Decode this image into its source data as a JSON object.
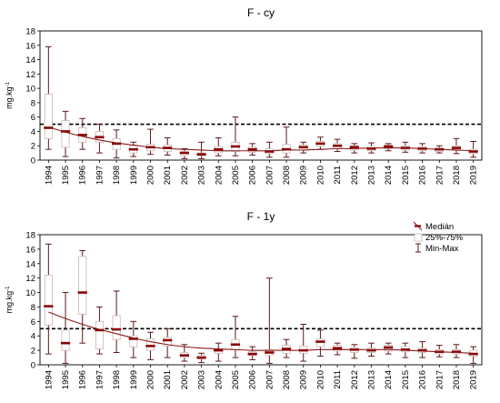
{
  "chart_data": [
    {
      "type": "box",
      "title": "F - cy",
      "ylabel": "mg.kg-1",
      "ylabel_main": "mg.kg",
      "ylabel_sup": "-1",
      "ylim": [
        0,
        18
      ],
      "yticks": [
        0,
        2,
        4,
        6,
        8,
        10,
        12,
        14,
        16,
        18
      ],
      "reference_line": 5,
      "categories": [
        "1994",
        "1995",
        "1996",
        "1997",
        "1998",
        "1999",
        "2000",
        "2001",
        "2002",
        "2003",
        "2004",
        "2005",
        "2006",
        "2007",
        "2008",
        "2009",
        "2010",
        "2011",
        "2012",
        "2013",
        "2014",
        "2015",
        "2016",
        "2017",
        "2018",
        "2019"
      ],
      "median": [
        4.5,
        4.0,
        3.5,
        3.2,
        2.3,
        1.5,
        1.8,
        1.7,
        1.0,
        0.8,
        1.5,
        1.9,
        1.5,
        1.2,
        1.5,
        1.8,
        2.3,
        2.0,
        1.8,
        1.6,
        1.9,
        1.7,
        1.6,
        1.5,
        1.7,
        1.2
      ],
      "q1": [
        3.0,
        1.8,
        2.5,
        2.5,
        1.5,
        1.0,
        1.3,
        1.2,
        0.6,
        0.6,
        1.0,
        1.2,
        1.1,
        0.9,
        1.0,
        1.4,
        1.9,
        1.6,
        1.4,
        1.3,
        1.6,
        1.4,
        1.3,
        1.2,
        1.3,
        0.9
      ],
      "q3": [
        9.2,
        5.5,
        4.5,
        4.0,
        3.0,
        2.0,
        2.2,
        2.1,
        1.2,
        1.0,
        1.9,
        2.5,
        1.8,
        1.6,
        2.2,
        2.1,
        2.6,
        2.3,
        2.0,
        1.9,
        2.1,
        2.0,
        1.9,
        1.7,
        2.0,
        1.5
      ],
      "min": [
        1.5,
        0.5,
        1.5,
        1.0,
        0.3,
        0.5,
        0.8,
        0.7,
        0.2,
        0.2,
        0.6,
        0.6,
        0.7,
        0.4,
        0.4,
        1.0,
        1.5,
        1.2,
        1.0,
        1.0,
        1.3,
        1.1,
        1.0,
        1.0,
        0.9,
        0.4
      ],
      "max": [
        15.8,
        6.8,
        5.8,
        5.0,
        4.2,
        2.5,
        4.3,
        3.1,
        1.6,
        2.5,
        3.1,
        6.0,
        2.3,
        2.5,
        4.6,
        2.5,
        3.2,
        2.9,
        2.3,
        2.4,
        2.3,
        2.5,
        2.3,
        2.0,
        3.0,
        2.6
      ],
      "trend": [
        4.6,
        3.9,
        3.3,
        2.8,
        2.4,
        2.1,
        1.8,
        1.6,
        1.5,
        1.4,
        1.3,
        1.3,
        1.3,
        1.3,
        1.4,
        1.4,
        1.5,
        1.6,
        1.6,
        1.7,
        1.7,
        1.7,
        1.6,
        1.5,
        1.4,
        1.3
      ],
      "colors": {
        "box": "#c9b8b3",
        "median": "#8b0000",
        "whisker": "#5a1a1a",
        "trend": "#8b1a1a",
        "reference": "#000000"
      }
    },
    {
      "type": "box",
      "title": "F - 1y",
      "ylabel": "mg.kg-1",
      "ylabel_main": "mg.kg",
      "ylabel_sup": "-1",
      "ylim": [
        0,
        18
      ],
      "yticks": [
        0,
        2,
        4,
        6,
        8,
        10,
        12,
        14,
        16,
        18
      ],
      "reference_line": 5,
      "categories": [
        "1994",
        "1995",
        "1996",
        "1997",
        "1998",
        "1999",
        "2000",
        "2001",
        "2002",
        "2003",
        "2004",
        "2005",
        "2006",
        "2007",
        "2008",
        "2009",
        "2010",
        "2011",
        "2012",
        "2013",
        "2014",
        "2015",
        "2016",
        "2017",
        "2018",
        "2019"
      ],
      "median": [
        8.1,
        3.0,
        10.0,
        4.8,
        4.9,
        3.6,
        2.6,
        3.4,
        1.3,
        1.0,
        2.0,
        2.8,
        1.5,
        1.7,
        2.2,
        2.0,
        3.2,
        2.3,
        2.1,
        2.0,
        2.4,
        2.1,
        2.0,
        1.8,
        1.8,
        1.5
      ],
      "q1": [
        5.5,
        2.0,
        7.0,
        2.2,
        3.5,
        2.5,
        2.0,
        2.6,
        1.0,
        0.8,
        1.6,
        2.1,
        1.3,
        1.3,
        1.6,
        1.6,
        2.5,
        1.9,
        1.7,
        1.7,
        1.9,
        1.8,
        1.7,
        1.5,
        1.5,
        1.2
      ],
      "q3": [
        12.4,
        4.8,
        15.0,
        6.0,
        6.8,
        4.0,
        3.6,
        3.8,
        1.7,
        1.3,
        2.1,
        3.5,
        1.8,
        2.1,
        2.7,
        2.6,
        3.6,
        2.7,
        2.4,
        2.3,
        2.7,
        2.5,
        2.3,
        2.1,
        2.1,
        2.0
      ],
      "min": [
        1.5,
        0.2,
        3.0,
        1.5,
        1.7,
        1.0,
        0.7,
        1.0,
        0.5,
        0.3,
        0.5,
        1.0,
        0.7,
        0.2,
        1.0,
        0.5,
        1.2,
        1.4,
        0.9,
        1.2,
        1.5,
        1.0,
        1.0,
        1.1,
        1.0,
        0.2
      ],
      "max": [
        16.7,
        10.0,
        15.8,
        8.0,
        10.2,
        6.0,
        4.5,
        5.0,
        2.8,
        1.6,
        3.0,
        6.7,
        2.5,
        12.0,
        3.5,
        5.6,
        4.8,
        3.0,
        2.8,
        3.0,
        3.0,
        3.0,
        3.2,
        2.7,
        2.8,
        2.5
      ],
      "trend": [
        7.3,
        6.4,
        5.6,
        4.9,
        4.3,
        3.7,
        3.2,
        2.8,
        2.5,
        2.3,
        2.2,
        2.1,
        2.0,
        2.0,
        2.0,
        2.0,
        2.1,
        2.1,
        2.1,
        2.1,
        2.1,
        2.0,
        1.9,
        1.8,
        1.7,
        1.6
      ],
      "legend": {
        "placement": "top-right",
        "entries": [
          "Medián",
          "25%-75%",
          "Min-Max"
        ]
      },
      "colors": {
        "box": "#c9b8b3",
        "median": "#8b0000",
        "whisker": "#5a1a1a",
        "trend": "#8b1a1a",
        "reference": "#000000"
      }
    }
  ]
}
